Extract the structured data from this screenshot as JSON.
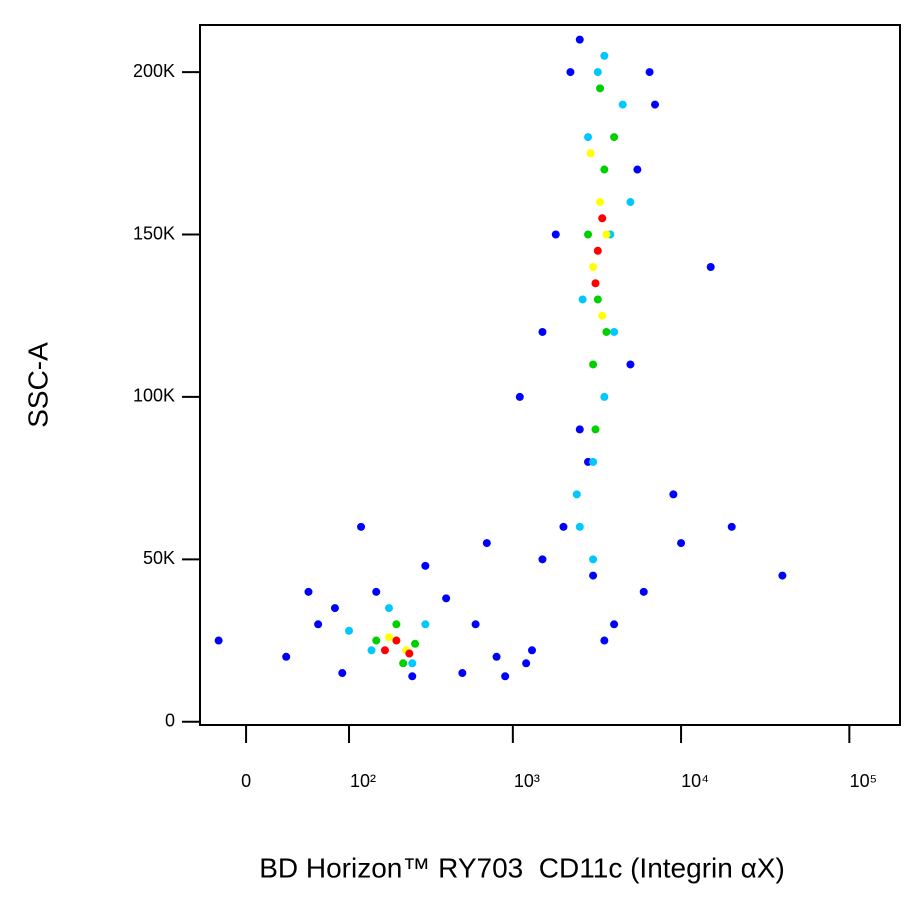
{
  "chart_data": {
    "type": "scatter",
    "x_label": "BD Horizon™ RY703  CD11c (Integrin αX)",
    "y_label": "SSC-A",
    "xscale": "arcsinh",
    "xlim": [
      -35,
      200000
    ],
    "xticks": [
      0,
      {
        "value": 100,
        "label": "10²"
      },
      {
        "value": 1000,
        "label": "10³"
      },
      {
        "value": 10000,
        "label": "10⁴"
      },
      {
        "value": 100000,
        "label": "10⁵"
      }
    ],
    "ylim": [
      -1000,
      214500
    ],
    "yticks": [
      0,
      {
        "value": 50000,
        "label": "50K"
      },
      {
        "value": 100000,
        "label": "100K"
      },
      {
        "value": 150000,
        "label": "150K"
      },
      {
        "value": 200000,
        "label": "200K"
      }
    ],
    "series": [
      {
        "color": "#0000ff",
        "x": [
          30,
          60,
          -20,
          90,
          150,
          400,
          600,
          800,
          1200,
          1500,
          2000,
          2500,
          5000,
          7000,
          9000,
          1800,
          2200,
          6000,
          4000,
          3500,
          2800,
          1500,
          1100,
          700,
          300,
          120,
          50,
          10000,
          20000,
          40000,
          15000,
          2500,
          6500,
          5500,
          3000,
          1300,
          900,
          500,
          250,
          80
        ],
        "values": [
          20000,
          30000,
          25000,
          15000,
          40000,
          38000,
          30000,
          20000,
          18000,
          50000,
          60000,
          90000,
          110000,
          190000,
          70000,
          150000,
          200000,
          40000,
          30000,
          25000,
          80000,
          120000,
          100000,
          55000,
          48000,
          60000,
          40000,
          55000,
          60000,
          45000,
          140000,
          210000,
          200000,
          170000,
          45000,
          22000,
          14000,
          15000,
          14000,
          35000
        ]
      },
      {
        "color": "#00c8ff",
        "x": [
          100,
          180,
          300,
          250,
          140,
          2500,
          3000,
          3500,
          4000,
          2800,
          3200,
          4500,
          2600,
          3800,
          3000,
          2400,
          5000,
          3500
        ],
        "values": [
          28000,
          35000,
          30000,
          18000,
          22000,
          60000,
          80000,
          100000,
          120000,
          180000,
          200000,
          190000,
          130000,
          150000,
          50000,
          70000,
          160000,
          205000
        ]
      },
      {
        "color": "#00d000",
        "x": [
          150,
          200,
          260,
          220,
          3000,
          3500,
          3200,
          2800,
          4000,
          3300,
          3600,
          3100
        ],
        "values": [
          25000,
          30000,
          24000,
          18000,
          110000,
          170000,
          130000,
          150000,
          180000,
          195000,
          120000,
          90000
        ]
      },
      {
        "color": "#ffff00",
        "x": [
          180,
          230,
          3300,
          3000,
          3600,
          3400,
          2900
        ],
        "values": [
          26000,
          22000,
          160000,
          140000,
          150000,
          125000,
          175000
        ]
      },
      {
        "color": "#ff0000",
        "x": [
          170,
          200,
          240,
          3200,
          3400,
          3100
        ],
        "values": [
          22000,
          25000,
          21000,
          145000,
          155000,
          135000
        ]
      }
    ]
  }
}
